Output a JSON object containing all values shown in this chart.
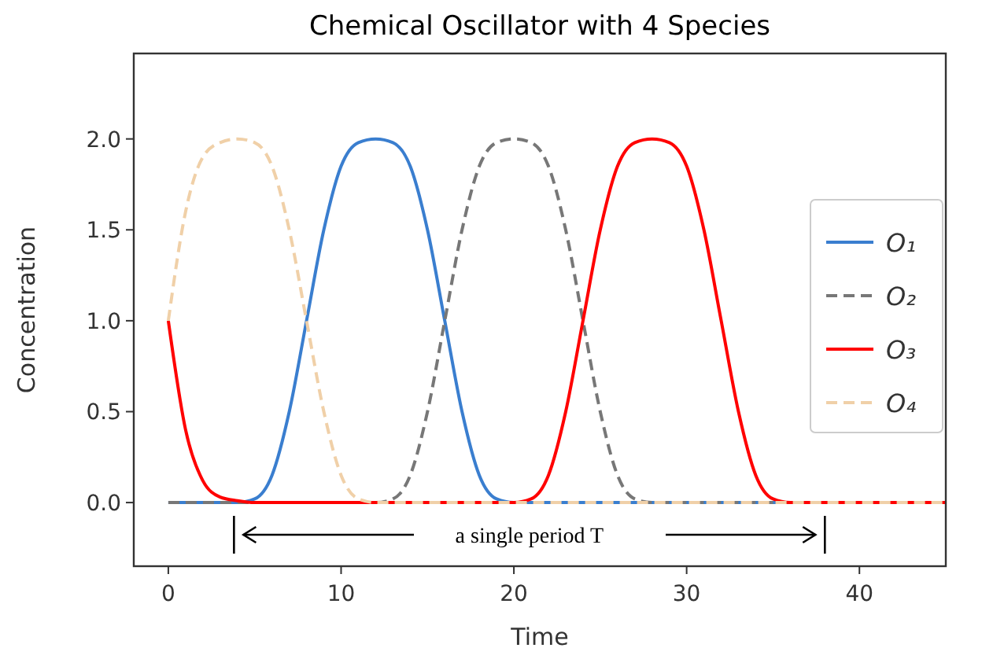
{
  "chart_data": {
    "type": "line",
    "title": "Chemical Oscillator with 4 Species",
    "xlabel": "Time",
    "ylabel": "Concentration",
    "x": [
      0,
      1,
      2,
      3,
      4,
      5,
      6,
      7,
      8,
      9,
      10,
      11,
      12,
      13,
      14,
      15,
      16,
      17,
      18,
      19,
      20,
      21,
      22,
      23,
      24,
      25,
      26,
      27,
      28,
      29,
      30,
      31,
      32,
      33,
      34,
      35,
      36,
      37,
      38,
      39,
      40,
      41,
      42,
      43,
      44,
      45
    ],
    "series": [
      {
        "name": "O₁",
        "color": "#3a7ecf",
        "line_style": "solid",
        "values": [
          0,
          0,
          0,
          0,
          0,
          0.02,
          0.15,
          0.5,
          1,
          1.5,
          1.85,
          1.98,
          2,
          1.98,
          1.85,
          1.5,
          1,
          0.5,
          0.15,
          0.02,
          0,
          0,
          0,
          0,
          0,
          0,
          0,
          0,
          0,
          0,
          0,
          0,
          0,
          0,
          0,
          0,
          0,
          null,
          null,
          null,
          null,
          null,
          null,
          null,
          null,
          null
        ]
      },
      {
        "name": "O₂",
        "color": "#777777",
        "line_style": "dashed",
        "values": [
          0,
          0,
          0,
          0,
          0,
          0,
          0,
          0,
          0,
          0,
          0,
          0,
          0,
          0.02,
          0.15,
          0.5,
          1,
          1.5,
          1.85,
          1.98,
          2,
          1.98,
          1.85,
          1.5,
          1,
          0.5,
          0.15,
          0.02,
          0,
          0,
          0,
          0,
          0,
          0,
          0,
          0,
          0,
          0,
          0,
          0,
          0,
          0,
          0,
          0,
          0,
          0
        ]
      },
      {
        "name": "O₃",
        "color": "#ff0000",
        "line_style": "solid",
        "values": [
          1,
          0.4,
          0.12,
          0.03,
          0.01,
          0,
          0,
          0,
          0,
          0,
          0,
          0,
          0,
          0,
          0,
          0,
          0,
          0,
          0,
          0,
          0,
          0.02,
          0.15,
          0.5,
          1,
          1.5,
          1.85,
          1.98,
          2,
          1.98,
          1.85,
          1.5,
          1,
          0.5,
          0.15,
          0.02,
          0,
          0,
          0,
          0,
          0,
          0,
          0,
          0,
          0,
          0
        ]
      },
      {
        "name": "O₄",
        "color": "#f0d0a8",
        "line_style": "dashed",
        "values": [
          1,
          1.6,
          1.9,
          1.98,
          2,
          1.98,
          1.85,
          1.5,
          1,
          0.5,
          0.15,
          0.02,
          0,
          0,
          0,
          0,
          0,
          0,
          0,
          0,
          0,
          0,
          0,
          0,
          0,
          0,
          0,
          0,
          0,
          0,
          0,
          0,
          0,
          0,
          0,
          0,
          0,
          0,
          0,
          0,
          0,
          0,
          0,
          0,
          0,
          0
        ]
      }
    ],
    "xlim": [
      -2,
      45
    ],
    "xticks": [
      0,
      10,
      20,
      30,
      40
    ],
    "ylim": [
      -0.35,
      2.47
    ],
    "yticks": [
      {
        "value": 0,
        "label": "0.0"
      },
      {
        "value": 0.5,
        "label": "0.5"
      },
      {
        "value": 1,
        "label": "1.0"
      },
      {
        "value": 1.5,
        "label": "1.5"
      },
      {
        "value": 2,
        "label": "2.0"
      }
    ],
    "legend": "right",
    "grid": false,
    "annotations": [
      "a single period T"
    ]
  }
}
